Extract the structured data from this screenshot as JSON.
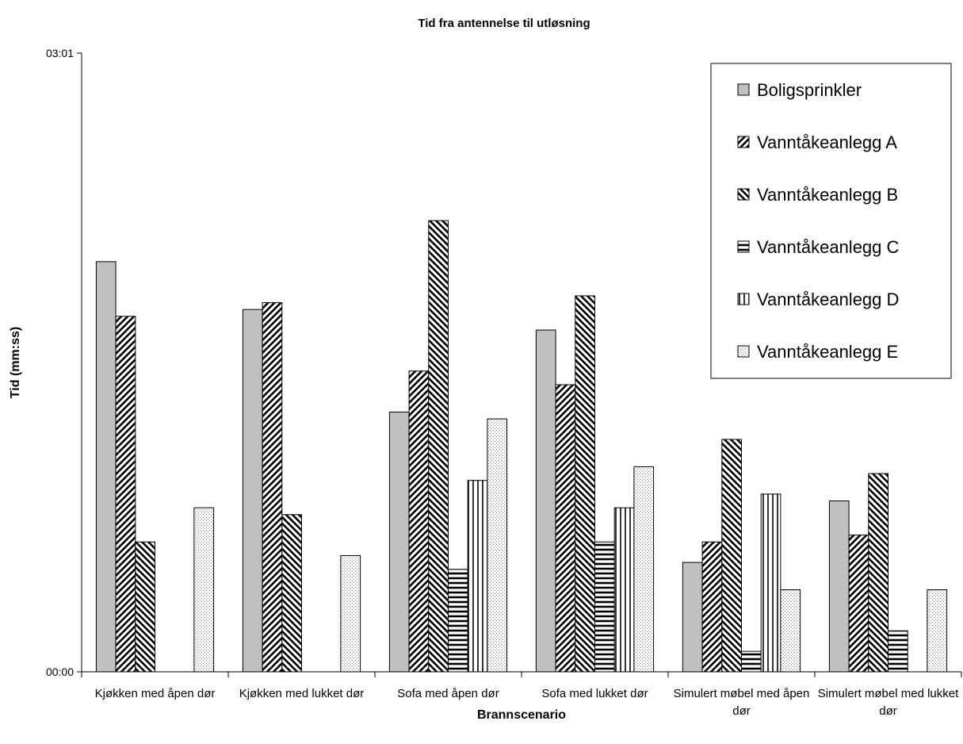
{
  "chart_data": {
    "type": "bar",
    "title": "Tid fra antennelse til utløsning",
    "x_label": "Brannscenario",
    "y_label": "Tid (mm:ss)",
    "categories": [
      "Kjøkken med åpen dør",
      "Kjøkken med lukket dør",
      "Sofa med åpen dør",
      "Sofa med lukket dør",
      "Simulert møbel med åpen dør",
      "Simulert møbel med lukket dør"
    ],
    "series": [
      {
        "name": "Boligsprinkler",
        "color": "#c0c0c0",
        "pattern": "solid",
        "values": [
          120,
          106,
          76,
          100,
          32,
          50
        ]
      },
      {
        "name": "Vanntåkeanlegg A",
        "color": "#000000",
        "pattern": "diagonal-up",
        "values": [
          104,
          108,
          88,
          84,
          38,
          40
        ]
      },
      {
        "name": "Vanntåkeanlegg B",
        "color": "#000000",
        "pattern": "diagonal-down",
        "values": [
          38,
          46,
          132,
          110,
          68,
          58
        ]
      },
      {
        "name": "Vanntåkeanlegg C",
        "color": "#000000",
        "pattern": "horizontal",
        "values": [
          null,
          null,
          30,
          38,
          6,
          12
        ]
      },
      {
        "name": "Vanntåkeanlegg D",
        "color": "#000000",
        "pattern": "vertical",
        "values": [
          null,
          null,
          56,
          48,
          52,
          null
        ]
      },
      {
        "name": "Vanntåkeanlegg E",
        "color": "#808080",
        "pattern": "dots",
        "values": [
          48,
          34,
          74,
          60,
          24,
          24
        ]
      }
    ],
    "ylim": [
      0,
      181
    ],
    "yticks": [
      {
        "value": 0,
        "label": "00:00"
      },
      {
        "value": 181,
        "label": "03:01"
      }
    ],
    "legend": "top-right"
  }
}
